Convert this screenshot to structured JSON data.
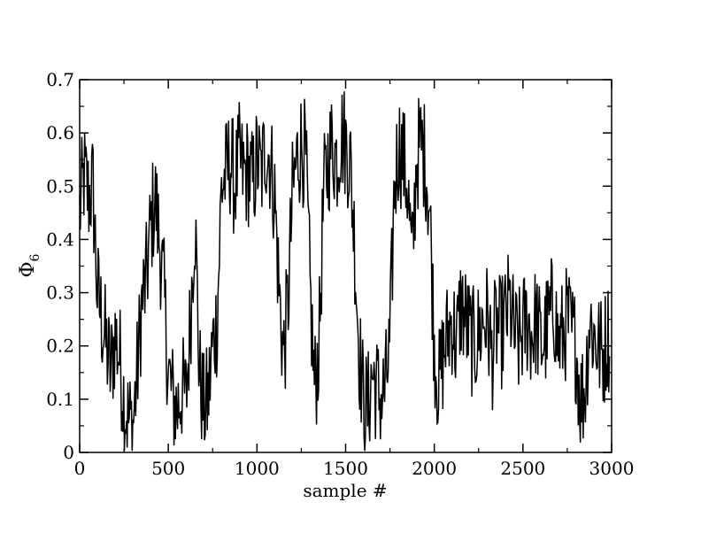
{
  "chart_data": {
    "type": "line",
    "title": "",
    "xlabel": "sample #",
    "ylabel": {
      "symbol": "Φ",
      "subscript": "6"
    },
    "xlim": [
      0,
      3000
    ],
    "ylim": [
      0,
      0.7
    ],
    "xticks": [
      0,
      500,
      1000,
      1500,
      2000,
      2500,
      3000
    ],
    "yticks": [
      0,
      0.1,
      0.2,
      0.3,
      0.4,
      0.5,
      0.6,
      0.7
    ],
    "xtick_labels": [
      "0",
      "500",
      "1000",
      "1500",
      "2000",
      "2500",
      "3000"
    ],
    "ytick_labels": [
      "0",
      "0.1",
      "0.2",
      "0.3",
      "0.4",
      "0.5",
      "0.6",
      "0.7"
    ],
    "grid": false,
    "legend": "none",
    "line_color": "#000000",
    "series": [
      {
        "values_coarse_step": 25,
        "x": [
          0,
          25,
          50,
          75,
          100,
          125,
          150,
          175,
          200,
          225,
          250,
          275,
          300,
          325,
          350,
          375,
          400,
          425,
          450,
          475,
          500,
          525,
          550,
          575,
          600,
          625,
          650,
          675,
          700,
          725,
          750,
          775,
          800,
          825,
          850,
          875,
          900,
          925,
          950,
          975,
          1000,
          1025,
          1050,
          1075,
          1100,
          1125,
          1150,
          1175,
          1200,
          1225,
          1250,
          1275,
          1300,
          1325,
          1350,
          1375,
          1400,
          1425,
          1450,
          1475,
          1500,
          1525,
          1550,
          1575,
          1600,
          1625,
          1650,
          1675,
          1700,
          1725,
          1750,
          1775,
          1800,
          1825,
          1850,
          1875,
          1900,
          1925,
          1950,
          1975,
          2000,
          2025,
          2050,
          2075,
          2100,
          2125,
          2150,
          2175,
          2200,
          2225,
          2250,
          2275,
          2300,
          2325,
          2350,
          2375,
          2400,
          2425,
          2450,
          2475,
          2500,
          2525,
          2550,
          2575,
          2600,
          2625,
          2650,
          2675,
          2700,
          2725,
          2750,
          2775,
          2800,
          2825,
          2850,
          2875,
          2900,
          2925,
          2950,
          2975
        ],
        "y": [
          0.45,
          0.52,
          0.48,
          0.5,
          0.3,
          0.25,
          0.2,
          0.15,
          0.22,
          0.18,
          0.1,
          0.06,
          0.05,
          0.15,
          0.28,
          0.32,
          0.42,
          0.48,
          0.4,
          0.3,
          0.15,
          0.1,
          0.08,
          0.12,
          0.1,
          0.25,
          0.45,
          0.15,
          0.08,
          0.1,
          0.2,
          0.25,
          0.5,
          0.52,
          0.55,
          0.5,
          0.55,
          0.52,
          0.53,
          0.5,
          0.55,
          0.52,
          0.58,
          0.55,
          0.48,
          0.3,
          0.18,
          0.28,
          0.48,
          0.55,
          0.58,
          0.55,
          0.3,
          0.12,
          0.2,
          0.48,
          0.55,
          0.58,
          0.55,
          0.6,
          0.58,
          0.55,
          0.4,
          0.2,
          0.1,
          0.08,
          0.15,
          0.12,
          0.1,
          0.12,
          0.2,
          0.5,
          0.58,
          0.55,
          0.5,
          0.35,
          0.55,
          0.58,
          0.55,
          0.45,
          0.2,
          0.12,
          0.18,
          0.22,
          0.25,
          0.2,
          0.28,
          0.25,
          0.22,
          0.2,
          0.22,
          0.25,
          0.25,
          0.18,
          0.24,
          0.22,
          0.25,
          0.28,
          0.22,
          0.2,
          0.23,
          0.25,
          0.22,
          0.25,
          0.2,
          0.22,
          0.25,
          0.28,
          0.2,
          0.22,
          0.25,
          0.22,
          0.2,
          0.1,
          0.12,
          0.25,
          0.22,
          0.2,
          0.18,
          0.22
        ]
      }
    ]
  }
}
